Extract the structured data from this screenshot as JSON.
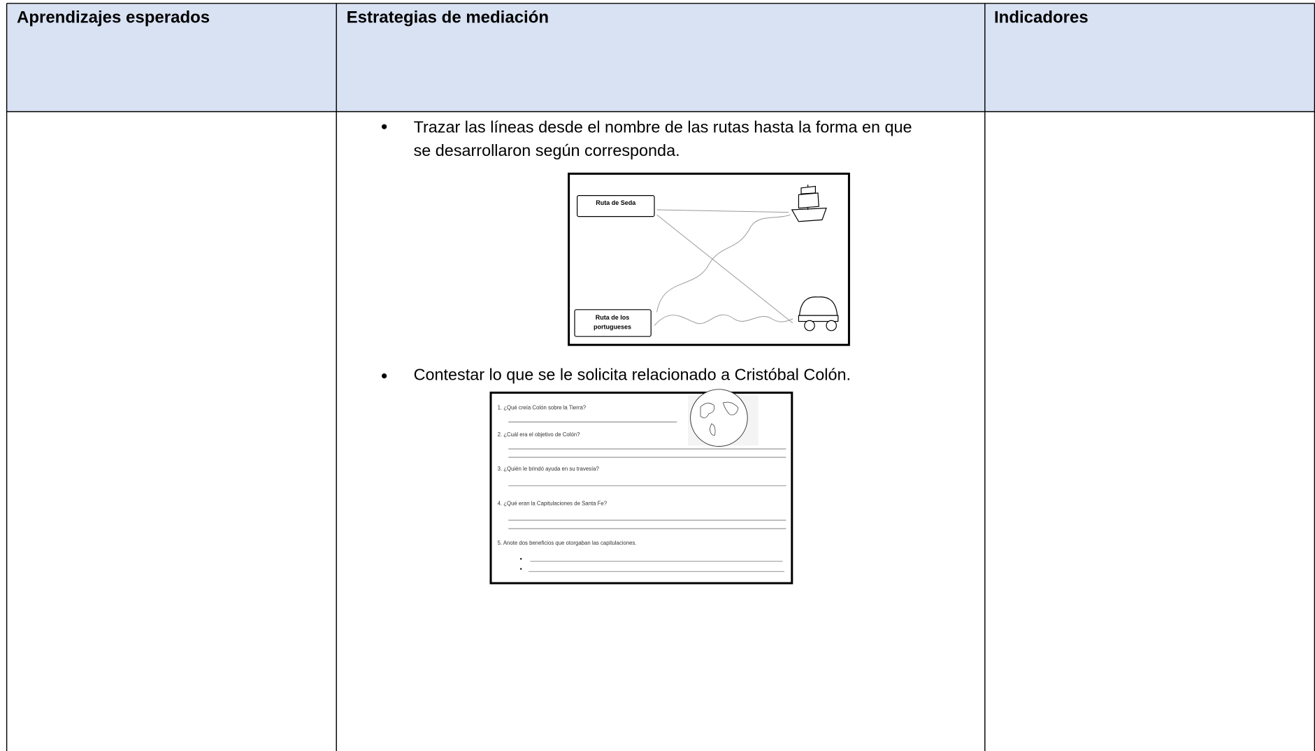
{
  "header": [
    "Aprendizajes esperados",
    "Estrategias de mediación",
    "Indicadores"
  ],
  "strategies": [
    {
      "lines": [
        "Trazar las líneas desde el nombre de las rutas hasta la forma en que",
        "se desarrollaron según corresponda."
      ],
      "worksheet": {
        "labels": [
          [
            "Ruta de Seda"
          ],
          [
            "Ruta de los",
            "portugueses"
          ]
        ]
      }
    },
    {
      "lines": [
        "Contestar lo que se le solicita relacionado a Cristóbal Colón."
      ],
      "worksheet": {
        "questions": [
          "1.  ¿Qué creía Colón sobre la Tierra?",
          "2.  ¿Cuál era el objetivo de Colón?",
          "3.  ¿Quién le brindó ayuda en su travesía?",
          "4.  ¿Qué eran la Capitulaciones de Santa Fe?",
          "5.  Anote dos beneficios que otorgaban las capitulaciones."
        ]
      }
    }
  ]
}
